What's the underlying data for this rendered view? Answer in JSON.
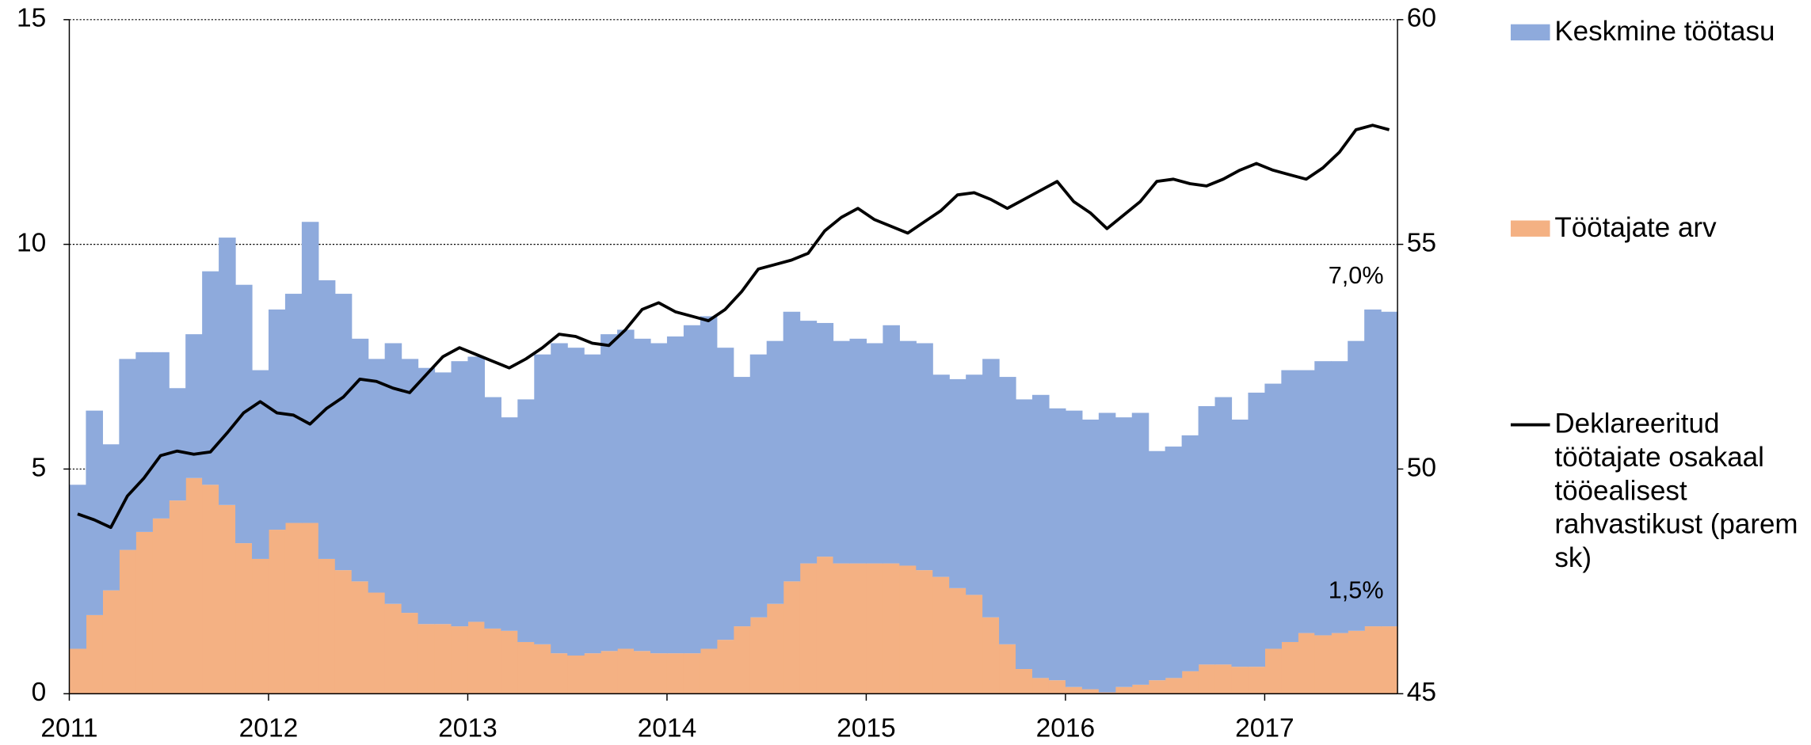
{
  "chart_data": {
    "type": "bar",
    "stacked": true,
    "categories": [
      "2011",
      null,
      null,
      null,
      null,
      null,
      null,
      null,
      null,
      null,
      null,
      null,
      "2012",
      null,
      null,
      null,
      null,
      null,
      null,
      null,
      null,
      null,
      null,
      null,
      "2013",
      null,
      null,
      null,
      null,
      null,
      null,
      null,
      null,
      null,
      null,
      null,
      "2014",
      null,
      null,
      null,
      null,
      null,
      null,
      null,
      null,
      null,
      null,
      null,
      "2015",
      null,
      null,
      null,
      null,
      null,
      null,
      null,
      null,
      null,
      null,
      null,
      "2016",
      null,
      null,
      null,
      null,
      null,
      null,
      null,
      null,
      null,
      null,
      null,
      "2017",
      null,
      null,
      null,
      null,
      null,
      null,
      null
    ],
    "ylim": [
      0,
      15
    ],
    "yticks": [
      0,
      5,
      10,
      15
    ],
    "y2lim": [
      45,
      60
    ],
    "y2ticks": [
      45,
      50,
      55,
      60
    ],
    "grid": true,
    "legend": "right",
    "series": [
      {
        "name": "Keskmine töötasu",
        "color": "#8eaadc",
        "values": [
          3.65,
          4.55,
          3.25,
          4.25,
          4.0,
          3.7,
          2.5,
          3.2,
          4.75,
          5.95,
          5.75,
          4.2,
          4.9,
          5.1,
          6.7,
          6.2,
          6.15,
          5.4,
          5.2,
          5.8,
          5.65,
          5.7,
          5.6,
          5.9,
          5.9,
          5.15,
          4.75,
          5.4,
          6.45,
          6.9,
          6.85,
          6.65,
          7.05,
          7.1,
          6.95,
          6.9,
          7.05,
          7.3,
          7.4,
          6.5,
          5.55,
          5.85,
          5.85,
          6.0,
          5.4,
          5.2,
          4.95,
          5.0,
          4.9,
          5.3,
          5.0,
          5.05,
          4.5,
          4.65,
          4.9,
          5.75,
          5.95,
          6.0,
          6.3,
          6.05,
          6.15,
          6.0,
          6.22,
          6.0,
          6.05,
          5.1,
          5.15,
          5.25,
          5.75,
          5.95,
          5.5,
          6.1,
          5.9,
          6.05,
          5.85,
          6.1,
          6.05,
          6.45,
          7.05,
          7.0
        ],
        "value_labels": [
          null,
          null,
          null,
          null,
          null,
          null,
          null,
          null,
          null,
          null,
          null,
          null,
          null,
          null,
          null,
          null,
          null,
          null,
          null,
          null,
          null,
          null,
          null,
          null,
          null,
          null,
          null,
          null,
          null,
          null,
          null,
          null,
          null,
          null,
          null,
          null,
          null,
          null,
          null,
          null,
          null,
          null,
          null,
          null,
          null,
          null,
          null,
          null,
          null,
          null,
          null,
          null,
          null,
          null,
          null,
          null,
          null,
          null,
          null,
          null,
          null,
          null,
          null,
          null,
          null,
          null,
          null,
          null,
          null,
          null,
          null,
          null,
          null,
          null,
          null,
          null,
          null,
          null,
          null,
          "7,0%"
        ]
      },
      {
        "name": "Töötajate arv",
        "color": "#f4b183",
        "values": [
          1.0,
          1.75,
          2.3,
          3.2,
          3.6,
          3.9,
          4.3,
          4.8,
          4.65,
          4.2,
          3.35,
          3.0,
          3.65,
          3.8,
          3.8,
          3.0,
          2.75,
          2.5,
          2.25,
          2.0,
          1.8,
          1.55,
          1.55,
          1.5,
          1.6,
          1.45,
          1.4,
          1.15,
          1.1,
          0.9,
          0.85,
          0.9,
          0.95,
          1.0,
          0.95,
          0.9,
          0.9,
          0.9,
          1.0,
          1.2,
          1.5,
          1.7,
          2.0,
          2.5,
          2.9,
          3.05,
          2.9,
          2.9,
          2.9,
          2.9,
          2.85,
          2.75,
          2.6,
          2.35,
          2.2,
          1.7,
          1.1,
          0.55,
          0.35,
          0.3,
          0.15,
          0.1,
          0.03,
          0.15,
          0.2,
          0.3,
          0.35,
          0.5,
          0.65,
          0.65,
          0.6,
          0.6,
          1.0,
          1.15,
          1.35,
          1.3,
          1.35,
          1.4,
          1.5,
          1.5
        ],
        "value_labels": [
          null,
          null,
          null,
          null,
          null,
          null,
          null,
          null,
          null,
          null,
          null,
          null,
          null,
          null,
          null,
          null,
          null,
          null,
          null,
          null,
          null,
          null,
          null,
          null,
          null,
          null,
          null,
          null,
          null,
          null,
          null,
          null,
          null,
          null,
          null,
          null,
          null,
          null,
          null,
          null,
          null,
          null,
          null,
          null,
          null,
          null,
          null,
          null,
          null,
          null,
          null,
          null,
          null,
          null,
          null,
          null,
          null,
          null,
          null,
          null,
          null,
          null,
          null,
          null,
          null,
          null,
          null,
          null,
          null,
          null,
          null,
          null,
          null,
          null,
          null,
          null,
          null,
          null,
          null,
          "1,5%"
        ]
      },
      {
        "name": "Deklareeritud töötajate osakaal tööealisest rahvastikust (parem sk)",
        "color": "#000000",
        "type": "line",
        "axis": "y2",
        "values": [
          49.0,
          48.87,
          48.7,
          49.4,
          49.8,
          50.3,
          50.4,
          50.33,
          50.38,
          50.8,
          51.25,
          51.5,
          51.25,
          51.2,
          51.0,
          51.35,
          51.6,
          52.0,
          51.95,
          51.8,
          51.7,
          52.1,
          52.5,
          52.7,
          52.55,
          52.4,
          52.25,
          52.45,
          52.7,
          53.0,
          52.95,
          52.8,
          52.75,
          53.1,
          53.55,
          53.7,
          53.5,
          53.4,
          53.3,
          53.55,
          53.95,
          54.45,
          54.55,
          54.65,
          54.8,
          55.3,
          55.6,
          55.8,
          55.55,
          55.4,
          55.25,
          55.5,
          55.75,
          56.1,
          56.15,
          56.0,
          55.8,
          56.0,
          56.2,
          56.4,
          55.95,
          55.7,
          55.35,
          55.65,
          55.95,
          56.4,
          56.45,
          56.35,
          56.3,
          56.45,
          56.65,
          56.8,
          56.65,
          56.55,
          56.45,
          56.7,
          57.05,
          57.55,
          57.65,
          57.55
        ]
      }
    ]
  }
}
